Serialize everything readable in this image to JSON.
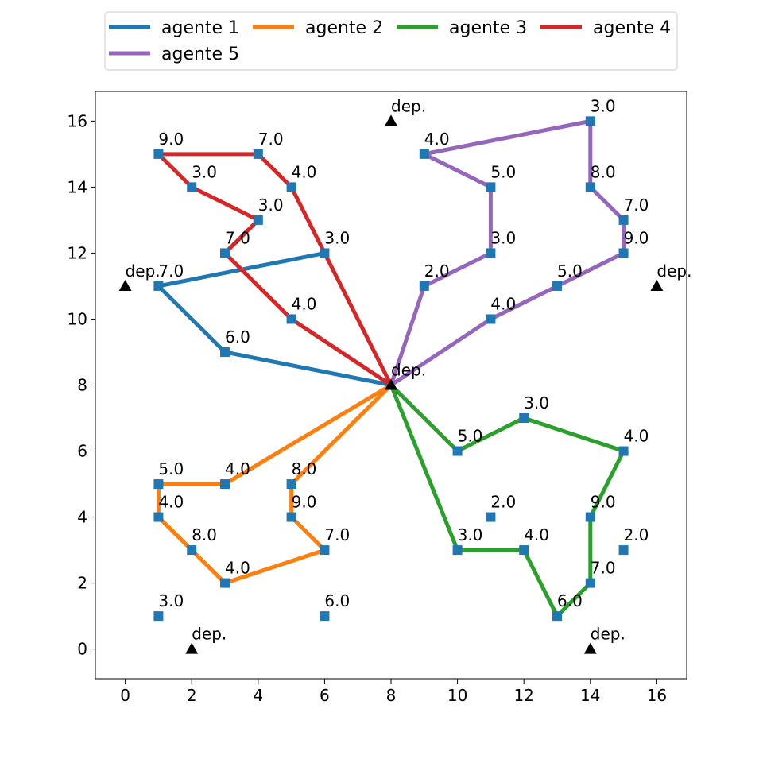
{
  "chart_data": {
    "type": "scatter",
    "title": "",
    "xlabel": "",
    "ylabel": "",
    "xlim": [
      -0.9,
      16.9
    ],
    "ylim": [
      -0.9,
      16.9
    ],
    "xticks": [
      0,
      2,
      4,
      6,
      8,
      10,
      12,
      14,
      16
    ],
    "yticks": [
      0,
      2,
      4,
      6,
      8,
      10,
      12,
      14,
      16
    ],
    "grid": false,
    "legend_position": "top-center",
    "depot_label": "dep.",
    "depots": [
      {
        "x": 8,
        "y": 8
      },
      {
        "x": 8,
        "y": 16
      },
      {
        "x": 0,
        "y": 11
      },
      {
        "x": 16,
        "y": 11
      },
      {
        "x": 2,
        "y": 0
      },
      {
        "x": 14,
        "y": 0
      }
    ],
    "customers": [
      {
        "x": 1,
        "y": 15,
        "label": "9.0"
      },
      {
        "x": 4,
        "y": 15,
        "label": "7.0"
      },
      {
        "x": 2,
        "y": 14,
        "label": "3.0"
      },
      {
        "x": 5,
        "y": 14,
        "label": "4.0"
      },
      {
        "x": 4,
        "y": 13,
        "label": "3.0"
      },
      {
        "x": 3,
        "y": 12,
        "label": "7.0"
      },
      {
        "x": 6,
        "y": 12,
        "label": "3.0"
      },
      {
        "x": 1,
        "y": 11,
        "label": "7.0"
      },
      {
        "x": 5,
        "y": 10,
        "label": "4.0"
      },
      {
        "x": 3,
        "y": 9,
        "label": "6.0"
      },
      {
        "x": 9,
        "y": 15,
        "label": "4.0"
      },
      {
        "x": 14,
        "y": 16,
        "label": "3.0"
      },
      {
        "x": 11,
        "y": 14,
        "label": "5.0"
      },
      {
        "x": 14,
        "y": 14,
        "label": "8.0"
      },
      {
        "x": 15,
        "y": 13,
        "label": "7.0"
      },
      {
        "x": 11,
        "y": 12,
        "label": "3.0"
      },
      {
        "x": 15,
        "y": 12,
        "label": "9.0"
      },
      {
        "x": 9,
        "y": 11,
        "label": "2.0"
      },
      {
        "x": 13,
        "y": 11,
        "label": "5.0"
      },
      {
        "x": 11,
        "y": 10,
        "label": "4.0"
      },
      {
        "x": 12,
        "y": 7,
        "label": "3.0"
      },
      {
        "x": 10,
        "y": 6,
        "label": "5.0"
      },
      {
        "x": 15,
        "y": 6,
        "label": "4.0"
      },
      {
        "x": 11,
        "y": 4,
        "label": "2.0"
      },
      {
        "x": 14,
        "y": 4,
        "label": "9.0"
      },
      {
        "x": 10,
        "y": 3,
        "label": "3.0"
      },
      {
        "x": 12,
        "y": 3,
        "label": "4.0"
      },
      {
        "x": 15,
        "y": 3,
        "label": "2.0"
      },
      {
        "x": 14,
        "y": 2,
        "label": "7.0"
      },
      {
        "x": 13,
        "y": 1,
        "label": "6.0"
      },
      {
        "x": 1,
        "y": 5,
        "label": "5.0"
      },
      {
        "x": 3,
        "y": 5,
        "label": "4.0"
      },
      {
        "x": 5,
        "y": 5,
        "label": "8.0"
      },
      {
        "x": 1,
        "y": 4,
        "label": "4.0"
      },
      {
        "x": 5,
        "y": 4,
        "label": "9.0"
      },
      {
        "x": 2,
        "y": 3,
        "label": "8.0"
      },
      {
        "x": 6,
        "y": 3,
        "label": "7.0"
      },
      {
        "x": 3,
        "y": 2,
        "label": "4.0"
      },
      {
        "x": 1,
        "y": 1,
        "label": "3.0"
      },
      {
        "x": 6,
        "y": 1,
        "label": "6.0"
      }
    ],
    "series": [
      {
        "name": "agente 1",
        "color": "#1f77b4",
        "points": [
          [
            8,
            8
          ],
          [
            3,
            9
          ],
          [
            1,
            11
          ],
          [
            6,
            12
          ]
        ]
      },
      {
        "name": "agente 2",
        "color": "#ff7f0e",
        "points": [
          [
            8,
            8
          ],
          [
            3,
            5
          ],
          [
            1,
            5
          ],
          [
            1,
            4
          ],
          [
            2,
            3
          ],
          [
            3,
            2
          ],
          [
            6,
            3
          ],
          [
            5,
            4
          ],
          [
            5,
            5
          ],
          [
            8,
            8
          ]
        ]
      },
      {
        "name": "agente 3",
        "color": "#2ca02c",
        "points": [
          [
            8,
            8
          ],
          [
            10,
            6
          ],
          [
            12,
            7
          ],
          [
            15,
            6
          ],
          [
            14,
            4
          ],
          [
            14,
            2
          ],
          [
            13,
            1
          ],
          [
            12,
            3
          ],
          [
            10,
            3
          ],
          [
            8,
            8
          ]
        ]
      },
      {
        "name": "agente 4",
        "color": "#d62728",
        "points": [
          [
            8,
            8
          ],
          [
            5,
            10
          ],
          [
            3,
            12
          ],
          [
            4,
            13
          ],
          [
            2,
            14
          ],
          [
            1,
            15
          ],
          [
            4,
            15
          ],
          [
            5,
            14
          ],
          [
            6,
            12
          ],
          [
            8,
            8
          ]
        ]
      },
      {
        "name": "agente 5",
        "color": "#9467bd",
        "points": [
          [
            8,
            8
          ],
          [
            9,
            11
          ],
          [
            11,
            12
          ],
          [
            11,
            14
          ],
          [
            9,
            15
          ],
          [
            14,
            16
          ],
          [
            14,
            14
          ],
          [
            15,
            13
          ],
          [
            15,
            12
          ],
          [
            13,
            11
          ],
          [
            11,
            10
          ],
          [
            8,
            8
          ]
        ]
      }
    ],
    "marker_color": "#1f77b4",
    "depot_color": "#000000",
    "frame_color": "#000000"
  }
}
